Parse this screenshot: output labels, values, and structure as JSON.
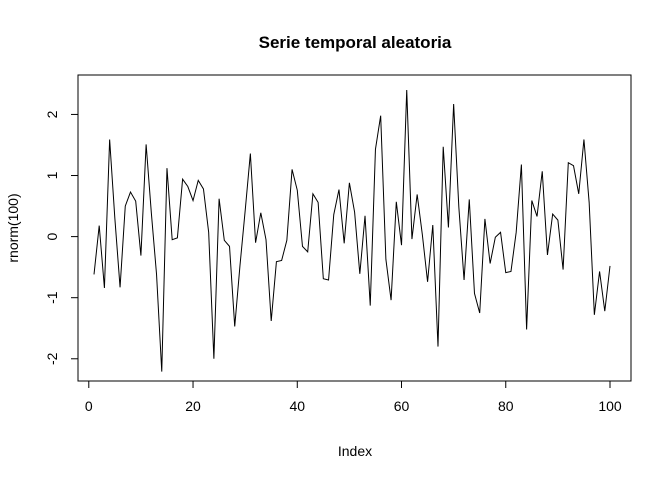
{
  "chart_data": {
    "type": "line",
    "title": "Serie temporal aleatoria",
    "xlabel": "Index",
    "ylabel": "rnorm(100)",
    "xlim": [
      1,
      100
    ],
    "ylim": [
      -2.2,
      2.4
    ],
    "x_ticks": [
      0,
      20,
      40,
      60,
      80,
      100
    ],
    "y_ticks": [
      -2,
      -1,
      0,
      1,
      2
    ],
    "grid": false,
    "legend": "none",
    "line_color": "#000000",
    "x": [
      1,
      2,
      3,
      4,
      5,
      6,
      7,
      8,
      9,
      10,
      11,
      12,
      13,
      14,
      15,
      16,
      17,
      18,
      19,
      20,
      21,
      22,
      23,
      24,
      25,
      26,
      27,
      28,
      29,
      30,
      31,
      32,
      33,
      34,
      35,
      36,
      37,
      38,
      39,
      40,
      41,
      42,
      43,
      44,
      45,
      46,
      47,
      48,
      49,
      50,
      51,
      52,
      53,
      54,
      55,
      56,
      57,
      58,
      59,
      60,
      61,
      62,
      63,
      64,
      65,
      66,
      67,
      68,
      69,
      70,
      71,
      72,
      73,
      74,
      75,
      76,
      77,
      78,
      79,
      80,
      81,
      82,
      83,
      84,
      85,
      86,
      87,
      88,
      89,
      90,
      91,
      92,
      93,
      94,
      95,
      96,
      97,
      98,
      99,
      100
    ],
    "values": [
      -0.62,
      0.18,
      -0.84,
      1.59,
      0.3,
      -0.83,
      0.5,
      0.73,
      0.58,
      -0.31,
      1.51,
      0.39,
      -0.62,
      -2.21,
      1.12,
      -0.05,
      -0.02,
      0.94,
      0.82,
      0.59,
      0.92,
      0.78,
      0.07,
      -2.0,
      0.62,
      -0.06,
      -0.16,
      -1.47,
      -0.48,
      0.42,
      1.36,
      -0.1,
      0.39,
      -0.05,
      -1.38,
      -0.41,
      -0.39,
      -0.06,
      1.1,
      0.76,
      -0.16,
      -0.25,
      0.7,
      0.56,
      -0.69,
      -0.71,
      0.36,
      0.77,
      -0.11,
      0.88,
      0.4,
      -0.61,
      0.34,
      -1.13,
      1.43,
      1.98,
      -0.37,
      -1.04,
      0.57,
      -0.14,
      2.4,
      -0.04,
      0.69,
      0.03,
      -0.74,
      0.19,
      -1.8,
      1.47,
      0.15,
      2.17,
      0.48,
      -0.71,
      0.61,
      -0.93,
      -1.25,
      0.29,
      -0.44,
      -0.01,
      0.07,
      -0.59,
      -0.57,
      0.07,
      1.18,
      -1.52,
      0.59,
      0.33,
      1.07,
      -0.3,
      0.37,
      0.27,
      -0.54,
      1.21,
      1.16,
      0.7,
      1.59,
      0.56,
      -1.28,
      -0.57,
      -1.22,
      -0.48
    ]
  }
}
